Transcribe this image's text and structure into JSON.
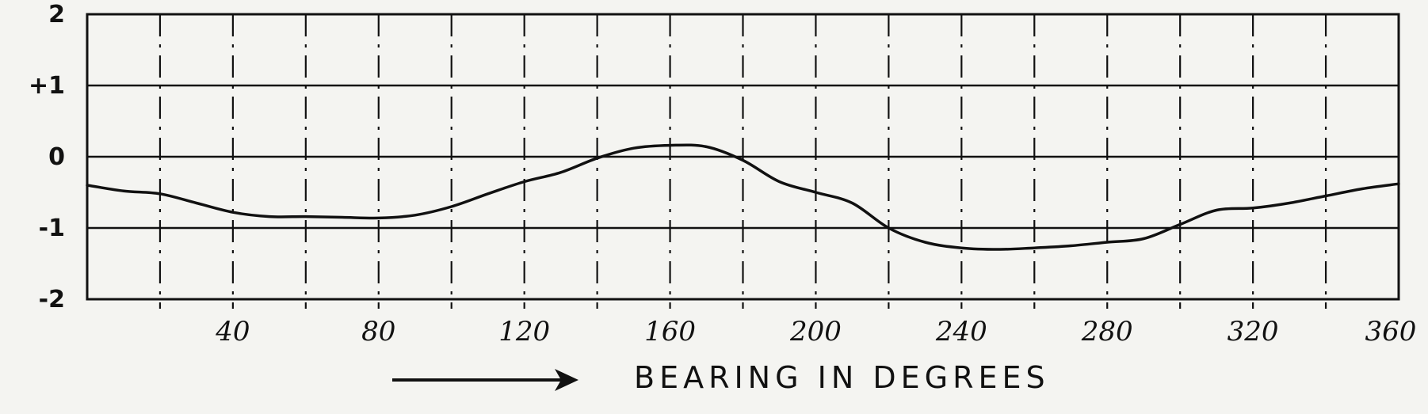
{
  "chart_data": {
    "type": "line",
    "title": "",
    "xlabel": "BEARING IN DEGREES",
    "ylabel": "",
    "xlim": [
      0,
      360
    ],
    "ylim": [
      -2,
      2
    ],
    "grid": true,
    "x_ticks": [
      {
        "value": 40,
        "label": "40"
      },
      {
        "value": 80,
        "label": "80"
      },
      {
        "value": 120,
        "label": "120"
      },
      {
        "value": 160,
        "label": "160"
      },
      {
        "value": 200,
        "label": "200"
      },
      {
        "value": 240,
        "label": "240"
      },
      {
        "value": 280,
        "label": "280"
      },
      {
        "value": 320,
        "label": "320"
      },
      {
        "value": 360,
        "label": "360"
      }
    ],
    "y_ticks": [
      {
        "value": 2,
        "label": "2"
      },
      {
        "value": 1,
        "label": "+1"
      },
      {
        "value": 0,
        "label": "0"
      },
      {
        "value": -1,
        "label": "-1"
      },
      {
        "value": -2,
        "label": "-2"
      }
    ],
    "series": [
      {
        "x": [
          0,
          10,
          20,
          30,
          40,
          50,
          60,
          70,
          80,
          90,
          100,
          110,
          120,
          130,
          140,
          150,
          160,
          170,
          180,
          190,
          200,
          210,
          220,
          230,
          240,
          250,
          260,
          270,
          280,
          290,
          300,
          310,
          320,
          330,
          340,
          350,
          360
        ],
        "y": [
          -0.4,
          -0.48,
          -0.52,
          -0.65,
          -0.78,
          -0.84,
          -0.84,
          -0.85,
          -0.86,
          -0.82,
          -0.7,
          -0.52,
          -0.35,
          -0.22,
          -0.02,
          0.12,
          0.16,
          0.14,
          -0.05,
          -0.35,
          -0.5,
          -0.65,
          -1.0,
          -1.2,
          -1.28,
          -1.3,
          -1.28,
          -1.25,
          -1.2,
          -1.15,
          -0.95,
          -0.75,
          -0.72,
          -0.65,
          -0.55,
          -0.45,
          -0.38
        ]
      }
    ]
  }
}
